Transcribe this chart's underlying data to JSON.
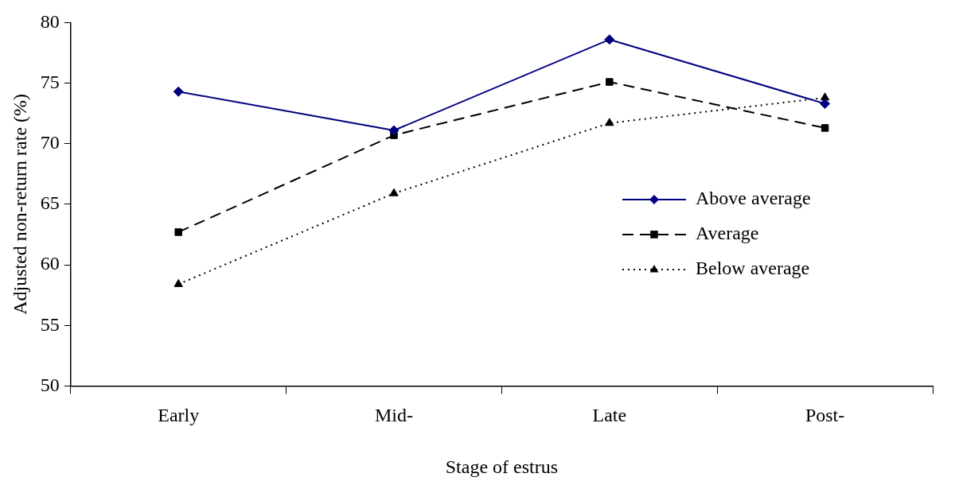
{
  "chart_data": {
    "type": "line",
    "xlabel": "Stage of estrus",
    "ylabel": "Adjusted non-return rate (%)",
    "categories": [
      "Early",
      "Mid-",
      "Late",
      "Post-"
    ],
    "series": [
      {
        "name": "Above average",
        "color": "#000080",
        "values": [
          74.3,
          71.1,
          78.6,
          73.3
        ],
        "line_style": "solid",
        "marker": "diamond"
      },
      {
        "name": "Average",
        "color": "#000000",
        "values": [
          62.7,
          70.7,
          75.1,
          71.3
        ],
        "line_style": "dashed",
        "marker": "square"
      },
      {
        "name": "Below average",
        "color": "#000000",
        "values": [
          58.4,
          65.9,
          71.7,
          73.8
        ],
        "line_style": "dotted",
        "marker": "triangle"
      }
    ],
    "ylim": [
      50,
      80
    ],
    "yticks": [
      50,
      55,
      60,
      65,
      70,
      75,
      80
    ],
    "grid": false,
    "legend": "right"
  }
}
